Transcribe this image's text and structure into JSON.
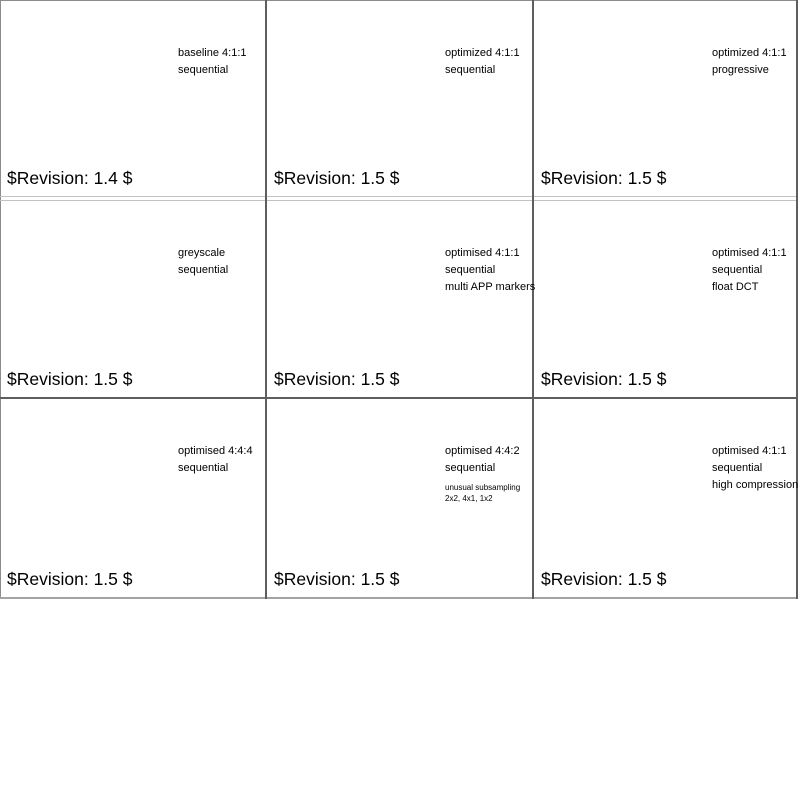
{
  "page": {
    "background": "#ffffff",
    "text_color": "#000000",
    "border_colors": {
      "outer": "#8c8c8c",
      "divider_dark": "#5e5e5e",
      "divider_light": "#c2c2c2",
      "bottom": "#a3a3a3"
    }
  },
  "cells": [
    {
      "caption_lines": [
        "baseline 4:1:1",
        "sequential"
      ],
      "revision": "$Revision: 1.4 $"
    },
    {
      "caption_lines": [
        "optimized 4:1:1",
        "sequential"
      ],
      "revision": "$Revision: 1.5 $"
    },
    {
      "caption_lines": [
        "optimized 4:1:1",
        "progressive"
      ],
      "revision": "$Revision: 1.5 $"
    },
    {
      "caption_lines": [
        "greyscale",
        "sequential"
      ],
      "revision": "$Revision: 1.5 $"
    },
    {
      "caption_lines": [
        "optimised 4:1:1",
        "sequential",
        "multi APP markers"
      ],
      "revision": "$Revision: 1.5 $"
    },
    {
      "caption_lines": [
        "optimised 4:1:1",
        "sequential",
        "float DCT"
      ],
      "revision": "$Revision: 1.5 $"
    },
    {
      "caption_lines": [
        "optimised 4:4:4",
        "sequential"
      ],
      "revision": "$Revision: 1.5 $"
    },
    {
      "caption_lines": [
        "optimised 4:4:2",
        "sequential"
      ],
      "small_lines": [
        "unusual subsampling",
        "2x2, 4x1, 1x2"
      ],
      "revision": "$Revision: 1.5 $"
    },
    {
      "caption_lines": [
        "optimised 4:1:1",
        "sequential",
        "high compression"
      ],
      "revision": "$Revision: 1.5 $"
    }
  ]
}
